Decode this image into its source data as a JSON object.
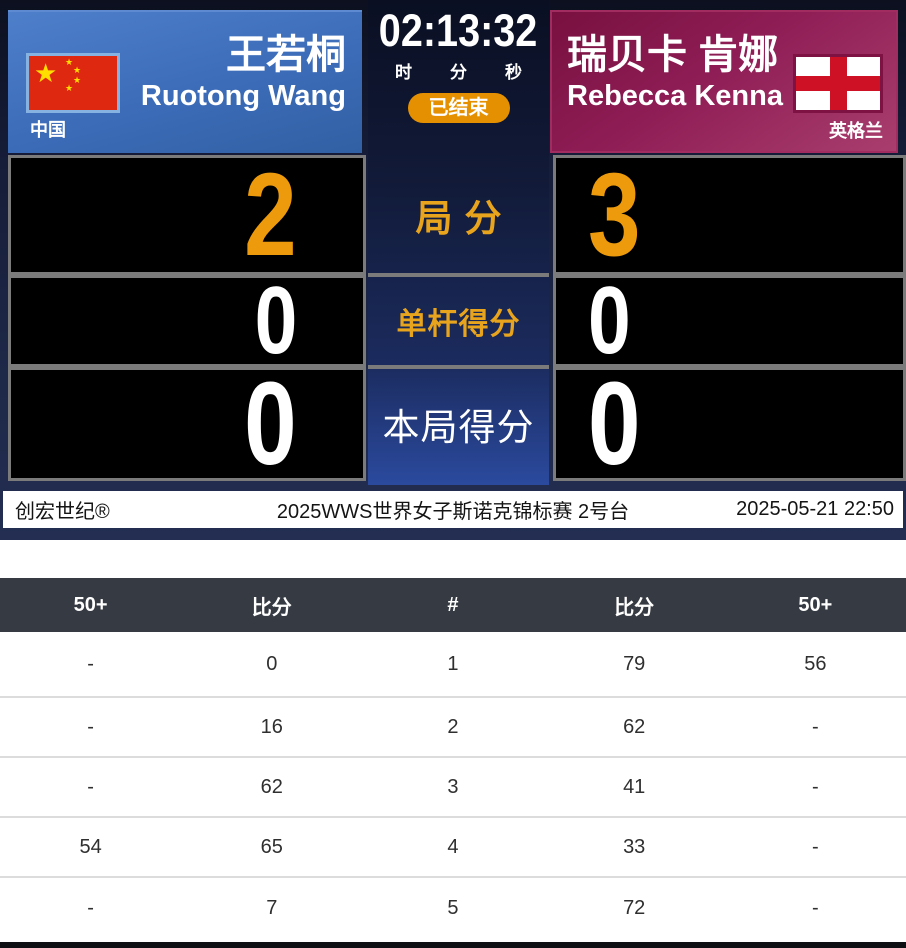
{
  "scoreboard": {
    "left_player": {
      "name_cn": "王若桐",
      "name_en": "Ruotong Wang",
      "country": "中国"
    },
    "right_player": {
      "name_cn": "瑞贝卡 肯娜",
      "name_en": "Rebecca Kenna",
      "country": "英格兰"
    },
    "timer": {
      "time": "02:13:32",
      "hour_label": "时",
      "minute_label": "分",
      "second_label": "秒",
      "status": "已结束"
    },
    "score_rows": [
      {
        "label": "局分",
        "left": "2",
        "right": "3"
      },
      {
        "label": "单杆得分",
        "left": "0",
        "right": "0"
      },
      {
        "label": "本局得分",
        "left": "0",
        "right": "0"
      }
    ],
    "footer": {
      "brand": "创宏世纪®",
      "event": "2025WWS世界女子斯诺克锦标赛 2号台",
      "datetime": "2025-05-21 22:50"
    }
  },
  "frames_table": {
    "headers": [
      "50+",
      "比分",
      "#",
      "比分",
      "50+"
    ],
    "rows": [
      [
        "-",
        "0",
        "1",
        "79",
        "56"
      ],
      [
        "-",
        "16",
        "2",
        "62",
        "-"
      ],
      [
        "-",
        "62",
        "3",
        "41",
        "-"
      ],
      [
        "54",
        "65",
        "4",
        "33",
        "-"
      ],
      [
        "-",
        "7",
        "5",
        "72",
        "-"
      ]
    ]
  },
  "icons": {
    "left_flag": "china-flag",
    "right_flag": "england-flag"
  },
  "colors": {
    "accent_orange": "#ED9B0C",
    "badge_orange": "#E59000",
    "left_panel_blue": "#3C6CB8",
    "right_panel_magenta": "#8E1D55",
    "table_header_gray": "#363A43",
    "cell_border_gray": "#7B7B7B"
  }
}
